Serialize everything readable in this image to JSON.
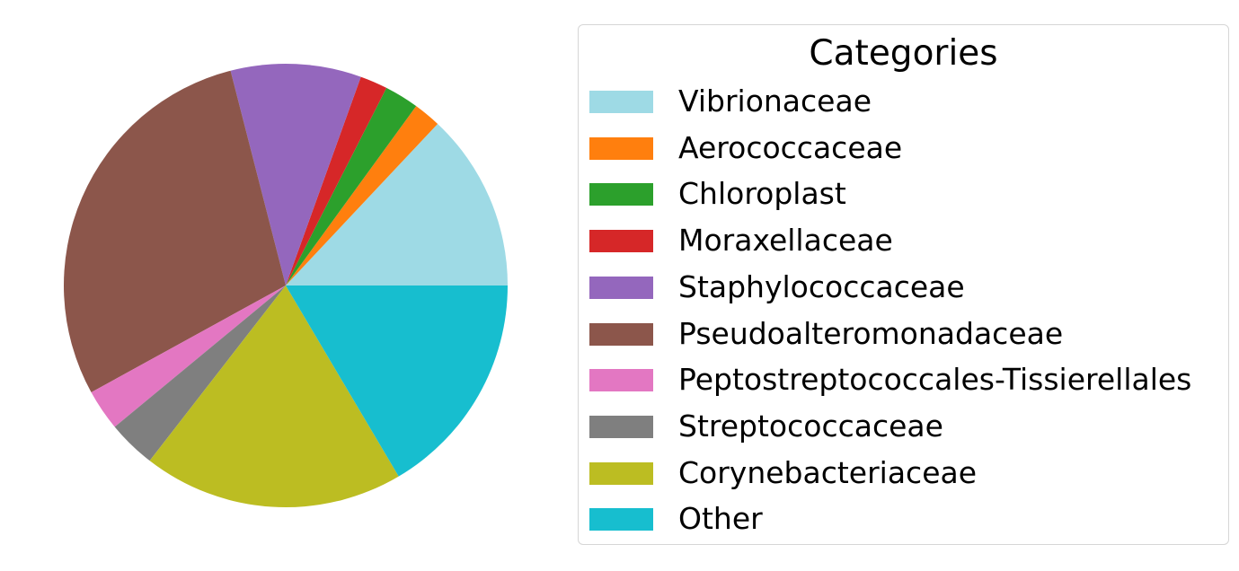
{
  "chart_data": {
    "type": "pie",
    "legend_title": "Categories",
    "legend_placement": "right",
    "start_angle_deg": 0,
    "direction": "counterclockwise",
    "slices": [
      {
        "label": "Vibrionaceae",
        "value": 13.0,
        "color": "#9edae5"
      },
      {
        "label": "Aerococcaceae",
        "value": 2.0,
        "color": "#ff7f0e"
      },
      {
        "label": "Chloroplast",
        "value": 2.5,
        "color": "#2ca02c"
      },
      {
        "label": "Moraxellaceae",
        "value": 2.0,
        "color": "#d62728"
      },
      {
        "label": "Staphylococcaceae",
        "value": 9.5,
        "color": "#9467bd"
      },
      {
        "label": "Pseudoalteromonadaceae",
        "value": 29.0,
        "color": "#8c564b"
      },
      {
        "label": "Peptostreptococcales-Tissierellales",
        "value": 3.0,
        "color": "#e377c2"
      },
      {
        "label": "Streptococcaceae",
        "value": 3.5,
        "color": "#7f7f7f"
      },
      {
        "label": "Corynebacteriaceae",
        "value": 19.0,
        "color": "#bcbd22"
      },
      {
        "label": "Other",
        "value": 16.5,
        "color": "#17becf"
      }
    ]
  }
}
